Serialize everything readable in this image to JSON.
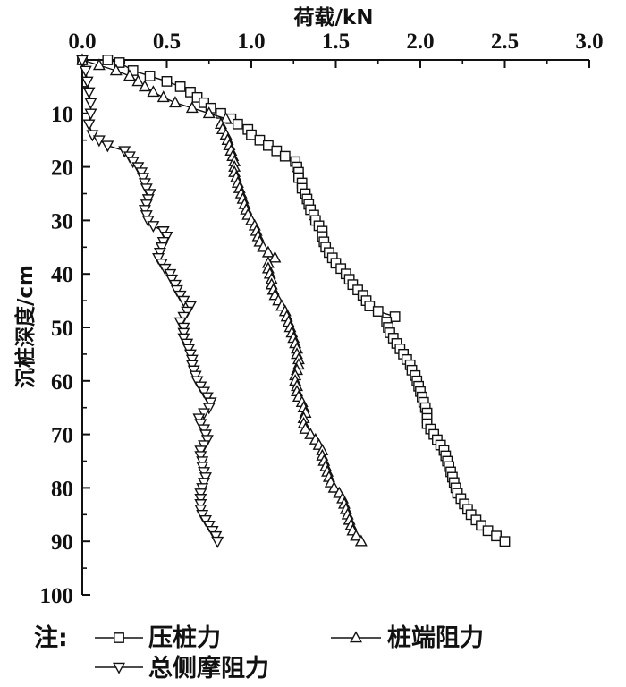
{
  "chart_data": {
    "type": "line",
    "xlabel": "荷载/kN",
    "ylabel": "沉桩深度/cm",
    "xlim": [
      0,
      3.0
    ],
    "ylim": [
      0,
      100
    ],
    "y_inverted": true,
    "x_axis_position": "top",
    "x_ticks": [
      "0.0",
      "0.5",
      "1.0",
      "1.5",
      "2.0",
      "2.5",
      "3.0"
    ],
    "y_ticks": [
      "10",
      "20",
      "30",
      "40",
      "50",
      "60",
      "70",
      "80",
      "90",
      "100"
    ],
    "legend": {
      "prefix": "注:",
      "placement": "bottom"
    },
    "series": [
      {
        "name": "压桩力",
        "marker": "square",
        "points": [
          [
            0.0,
            0
          ],
          [
            0.15,
            0
          ],
          [
            0.22,
            0.5
          ],
          [
            0.3,
            2
          ],
          [
            0.4,
            3
          ],
          [
            0.5,
            4
          ],
          [
            0.58,
            5
          ],
          [
            0.64,
            6
          ],
          [
            0.68,
            7
          ],
          [
            0.72,
            8
          ],
          [
            0.76,
            9
          ],
          [
            0.82,
            10
          ],
          [
            0.88,
            11
          ],
          [
            0.92,
            12
          ],
          [
            0.98,
            13
          ],
          [
            1.0,
            14
          ],
          [
            1.05,
            15
          ],
          [
            1.1,
            16
          ],
          [
            1.15,
            17
          ],
          [
            1.2,
            18
          ],
          [
            1.26,
            19
          ],
          [
            1.27,
            20
          ],
          [
            1.28,
            21
          ],
          [
            1.28,
            22
          ],
          [
            1.3,
            23
          ],
          [
            1.3,
            24
          ],
          [
            1.32,
            25
          ],
          [
            1.33,
            26
          ],
          [
            1.34,
            27
          ],
          [
            1.35,
            28
          ],
          [
            1.37,
            29
          ],
          [
            1.38,
            30
          ],
          [
            1.4,
            31
          ],
          [
            1.42,
            32
          ],
          [
            1.42,
            33
          ],
          [
            1.43,
            34
          ],
          [
            1.44,
            35
          ],
          [
            1.46,
            36
          ],
          [
            1.48,
            37
          ],
          [
            1.5,
            38
          ],
          [
            1.53,
            39
          ],
          [
            1.56,
            40
          ],
          [
            1.58,
            41
          ],
          [
            1.6,
            42
          ],
          [
            1.63,
            43
          ],
          [
            1.66,
            44
          ],
          [
            1.68,
            45
          ],
          [
            1.7,
            46
          ],
          [
            1.75,
            47
          ],
          [
            1.85,
            48
          ],
          [
            1.8,
            49
          ],
          [
            1.81,
            50
          ],
          [
            1.82,
            51
          ],
          [
            1.84,
            52
          ],
          [
            1.86,
            53
          ],
          [
            1.88,
            54
          ],
          [
            1.9,
            55
          ],
          [
            1.92,
            56
          ],
          [
            1.94,
            57
          ],
          [
            1.95,
            58
          ],
          [
            1.97,
            59
          ],
          [
            1.98,
            60
          ],
          [
            1.99,
            61
          ],
          [
            2.0,
            62
          ],
          [
            2.01,
            63
          ],
          [
            2.02,
            64
          ],
          [
            2.03,
            65
          ],
          [
            2.04,
            66
          ],
          [
            2.04,
            67
          ],
          [
            2.04,
            68
          ],
          [
            2.06,
            69
          ],
          [
            2.08,
            70
          ],
          [
            2.1,
            71
          ],
          [
            2.12,
            72
          ],
          [
            2.14,
            73
          ],
          [
            2.15,
            74
          ],
          [
            2.16,
            75
          ],
          [
            2.17,
            76
          ],
          [
            2.18,
            77
          ],
          [
            2.19,
            78
          ],
          [
            2.2,
            79
          ],
          [
            2.21,
            80
          ],
          [
            2.22,
            81
          ],
          [
            2.24,
            82
          ],
          [
            2.26,
            83
          ],
          [
            2.28,
            84
          ],
          [
            2.3,
            85
          ],
          [
            2.33,
            86
          ],
          [
            2.36,
            87
          ],
          [
            2.4,
            88
          ],
          [
            2.45,
            89
          ],
          [
            2.5,
            90
          ]
        ]
      },
      {
        "name": "桩端阻力",
        "marker": "triangle-up",
        "points": [
          [
            0.0,
            0
          ],
          [
            0.1,
            1
          ],
          [
            0.2,
            2
          ],
          [
            0.28,
            3
          ],
          [
            0.33,
            4
          ],
          [
            0.37,
            5
          ],
          [
            0.42,
            6
          ],
          [
            0.48,
            7
          ],
          [
            0.55,
            8
          ],
          [
            0.65,
            9
          ],
          [
            0.75,
            10
          ],
          [
            0.85,
            11
          ],
          [
            0.82,
            12
          ],
          [
            0.83,
            13
          ],
          [
            0.85,
            14
          ],
          [
            0.86,
            15
          ],
          [
            0.87,
            16
          ],
          [
            0.88,
            17
          ],
          [
            0.89,
            18
          ],
          [
            0.9,
            19
          ],
          [
            0.9,
            20
          ],
          [
            0.9,
            21
          ],
          [
            0.91,
            22
          ],
          [
            0.92,
            23
          ],
          [
            0.93,
            24
          ],
          [
            0.94,
            25
          ],
          [
            0.95,
            26
          ],
          [
            0.96,
            27
          ],
          [
            0.97,
            28
          ],
          [
            0.98,
            29
          ],
          [
            1.0,
            30
          ],
          [
            1.02,
            31
          ],
          [
            1.03,
            32
          ],
          [
            1.04,
            33
          ],
          [
            1.05,
            34
          ],
          [
            1.07,
            35
          ],
          [
            1.1,
            36
          ],
          [
            1.14,
            37
          ],
          [
            1.1,
            38
          ],
          [
            1.1,
            39
          ],
          [
            1.11,
            40
          ],
          [
            1.12,
            41
          ],
          [
            1.12,
            42
          ],
          [
            1.13,
            43
          ],
          [
            1.14,
            44
          ],
          [
            1.16,
            45
          ],
          [
            1.18,
            46
          ],
          [
            1.2,
            47
          ],
          [
            1.21,
            48
          ],
          [
            1.22,
            49
          ],
          [
            1.23,
            50
          ],
          [
            1.24,
            51
          ],
          [
            1.25,
            52
          ],
          [
            1.26,
            53
          ],
          [
            1.27,
            54
          ],
          [
            1.27,
            55
          ],
          [
            1.28,
            56
          ],
          [
            1.28,
            57
          ],
          [
            1.27,
            58
          ],
          [
            1.26,
            59
          ],
          [
            1.26,
            60
          ],
          [
            1.27,
            61
          ],
          [
            1.27,
            62
          ],
          [
            1.28,
            63
          ],
          [
            1.3,
            64
          ],
          [
            1.31,
            65
          ],
          [
            1.32,
            66
          ],
          [
            1.31,
            67
          ],
          [
            1.31,
            68
          ],
          [
            1.32,
            69
          ],
          [
            1.35,
            70
          ],
          [
            1.38,
            71
          ],
          [
            1.4,
            72
          ],
          [
            1.42,
            73
          ],
          [
            1.42,
            74
          ],
          [
            1.43,
            75
          ],
          [
            1.44,
            76
          ],
          [
            1.45,
            77
          ],
          [
            1.46,
            78
          ],
          [
            1.47,
            79
          ],
          [
            1.49,
            80
          ],
          [
            1.52,
            81
          ],
          [
            1.54,
            82
          ],
          [
            1.55,
            83
          ],
          [
            1.56,
            84
          ],
          [
            1.57,
            85
          ],
          [
            1.58,
            86
          ],
          [
            1.59,
            87
          ],
          [
            1.6,
            88
          ],
          [
            1.62,
            89
          ],
          [
            1.65,
            90
          ]
        ]
      },
      {
        "name": "总侧摩阻力",
        "marker": "triangle-down",
        "points": [
          [
            0.0,
            0
          ],
          [
            0.02,
            2
          ],
          [
            0.03,
            4
          ],
          [
            0.04,
            6
          ],
          [
            0.05,
            8
          ],
          [
            0.05,
            10
          ],
          [
            0.04,
            12
          ],
          [
            0.06,
            14
          ],
          [
            0.1,
            15
          ],
          [
            0.15,
            16
          ],
          [
            0.25,
            17
          ],
          [
            0.28,
            18
          ],
          [
            0.3,
            19
          ],
          [
            0.33,
            20
          ],
          [
            0.35,
            21
          ],
          [
            0.36,
            22
          ],
          [
            0.37,
            23
          ],
          [
            0.38,
            24
          ],
          [
            0.4,
            25
          ],
          [
            0.39,
            26
          ],
          [
            0.38,
            27
          ],
          [
            0.37,
            28
          ],
          [
            0.38,
            29
          ],
          [
            0.39,
            30
          ],
          [
            0.42,
            31
          ],
          [
            0.48,
            32
          ],
          [
            0.5,
            33
          ],
          [
            0.48,
            34
          ],
          [
            0.47,
            35
          ],
          [
            0.46,
            36
          ],
          [
            0.45,
            37
          ],
          [
            0.47,
            38
          ],
          [
            0.49,
            39
          ],
          [
            0.52,
            40
          ],
          [
            0.53,
            41
          ],
          [
            0.55,
            42
          ],
          [
            0.56,
            43
          ],
          [
            0.58,
            44
          ],
          [
            0.6,
            45
          ],
          [
            0.64,
            46
          ],
          [
            0.62,
            47
          ],
          [
            0.6,
            48
          ],
          [
            0.58,
            49
          ],
          [
            0.6,
            50
          ],
          [
            0.6,
            51
          ],
          [
            0.6,
            52
          ],
          [
            0.62,
            53
          ],
          [
            0.63,
            54
          ],
          [
            0.64,
            55
          ],
          [
            0.65,
            56
          ],
          [
            0.65,
            57
          ],
          [
            0.66,
            58
          ],
          [
            0.67,
            59
          ],
          [
            0.68,
            60
          ],
          [
            0.7,
            61
          ],
          [
            0.72,
            62
          ],
          [
            0.74,
            63
          ],
          [
            0.76,
            64
          ],
          [
            0.75,
            65
          ],
          [
            0.72,
            66
          ],
          [
            0.69,
            67
          ],
          [
            0.7,
            68
          ],
          [
            0.72,
            69
          ],
          [
            0.73,
            70
          ],
          [
            0.74,
            71
          ],
          [
            0.72,
            72
          ],
          [
            0.7,
            73
          ],
          [
            0.7,
            74
          ],
          [
            0.71,
            75
          ],
          [
            0.71,
            76
          ],
          [
            0.72,
            77
          ],
          [
            0.73,
            78
          ],
          [
            0.72,
            79
          ],
          [
            0.71,
            80
          ],
          [
            0.7,
            81
          ],
          [
            0.7,
            82
          ],
          [
            0.7,
            83
          ],
          [
            0.7,
            84
          ],
          [
            0.71,
            85
          ],
          [
            0.73,
            86
          ],
          [
            0.75,
            87
          ],
          [
            0.77,
            88
          ],
          [
            0.79,
            89
          ],
          [
            0.8,
            90
          ]
        ]
      }
    ]
  }
}
